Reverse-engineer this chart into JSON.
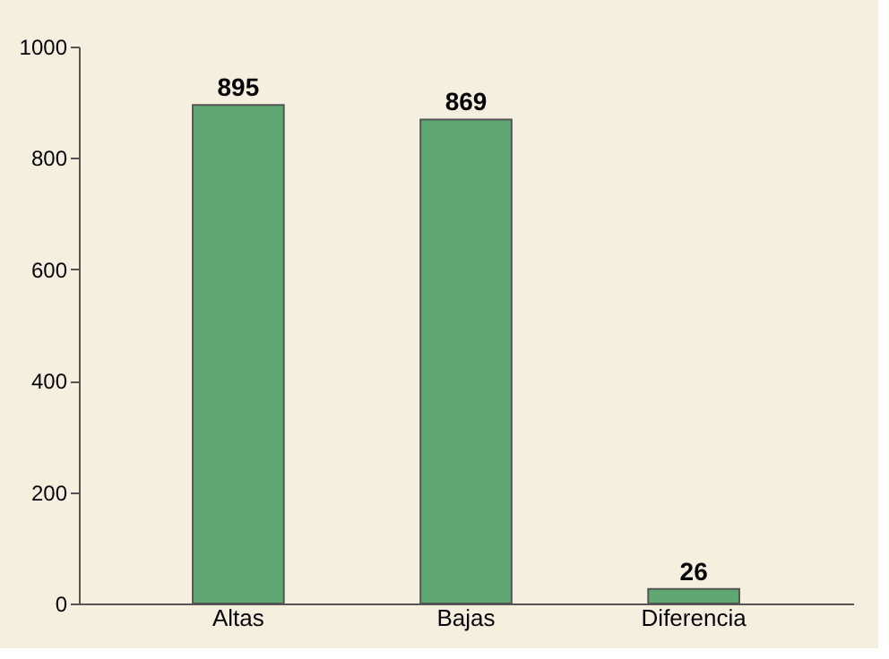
{
  "chart_data": {
    "type": "bar",
    "categories": [
      "Altas",
      "Bajas",
      "Diferencia"
    ],
    "values": [
      895,
      869,
      26
    ],
    "color": "#5fa873",
    "ylim": [
      0,
      1000
    ],
    "yticks": [
      0,
      200,
      400,
      600,
      800,
      1000
    ],
    "data_labels": true,
    "grid": false
  }
}
